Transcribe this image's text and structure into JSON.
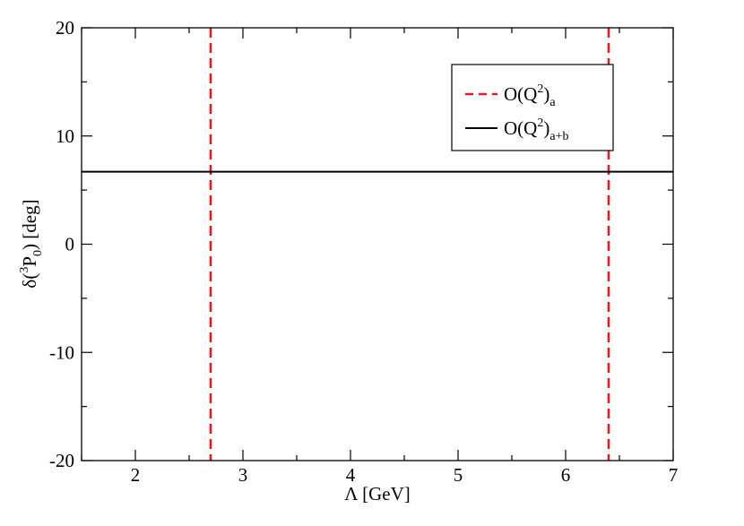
{
  "chart_data": {
    "type": "line",
    "xlabel": "Λ [GeV]",
    "ylabel": {
      "main": "δ(",
      "sup": "3",
      "letter": "P",
      "sub": "0",
      "tail": ") [deg]"
    },
    "xlim": [
      1.5,
      7
    ],
    "ylim": [
      -20,
      20
    ],
    "x_ticks": [
      2,
      3,
      4,
      5,
      6,
      7
    ],
    "y_ticks": [
      -20,
      -10,
      0,
      10,
      20
    ],
    "x_minor_step": 0.5,
    "y_minor_step": 5,
    "grid": false,
    "legend_position": "top-right",
    "series": [
      {
        "name": {
          "base": "O(Q",
          "sup": "2",
          "close": ")",
          "sub": "a"
        },
        "style": "dashed",
        "color": "#e8191e",
        "kind": "vertical",
        "x_values": [
          2.7,
          6.4
        ]
      },
      {
        "name": {
          "base": "O(Q",
          "sup": "2",
          "close": ")",
          "sub": "a+b"
        },
        "style": "solid",
        "color": "#000000",
        "kind": "horizontal",
        "y_value": 6.7
      }
    ]
  }
}
